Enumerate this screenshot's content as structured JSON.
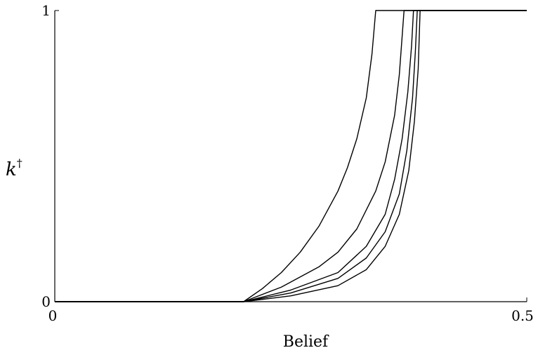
{
  "chart_data": {
    "type": "line",
    "xlabel": "Belief",
    "ylabel": "k",
    "ylabel_superscript": "†",
    "xlim": [
      0,
      0.5
    ],
    "ylim": [
      0,
      1
    ],
    "x_ticks": [
      "0",
      "0.5"
    ],
    "y_ticks": [
      "0",
      "1"
    ],
    "grid": false,
    "series": [
      {
        "x": [
          0,
          0.2,
          0.22,
          0.24,
          0.26,
          0.28,
          0.3,
          0.31,
          0.32,
          0.33,
          0.336,
          0.34,
          0.36,
          0.38,
          0.4,
          0.45,
          0.5
        ],
        "y": [
          0,
          0,
          0.045,
          0.1,
          0.17,
          0.26,
          0.38,
          0.46,
          0.56,
          0.7,
          0.85,
          1,
          1,
          1,
          1,
          1,
          1
        ]
      },
      {
        "x": [
          0,
          0.2,
          0.24,
          0.28,
          0.3,
          0.32,
          0.34,
          0.35,
          0.36,
          0.365,
          0.37,
          0.38,
          0.4,
          0.45,
          0.5
        ],
        "y": [
          0,
          0,
          0.05,
          0.12,
          0.17,
          0.25,
          0.38,
          0.48,
          0.64,
          0.78,
          1,
          1,
          1,
          1,
          1
        ]
      },
      {
        "x": [
          0,
          0.2,
          0.25,
          0.3,
          0.33,
          0.35,
          0.36,
          0.368,
          0.374,
          0.378,
          0.38,
          0.4,
          0.45,
          0.5
        ],
        "y": [
          0,
          0,
          0.04,
          0.1,
          0.19,
          0.3,
          0.42,
          0.56,
          0.72,
          0.88,
          1,
          1,
          1,
          1
        ]
      },
      {
        "x": [
          0,
          0.2,
          0.25,
          0.3,
          0.33,
          0.35,
          0.365,
          0.373,
          0.379,
          0.382,
          0.384,
          0.4,
          0.45,
          0.5
        ],
        "y": [
          0,
          0,
          0.03,
          0.08,
          0.15,
          0.24,
          0.37,
          0.52,
          0.7,
          0.86,
          1,
          1,
          1,
          1
        ]
      },
      {
        "x": [
          0,
          0.2,
          0.25,
          0.3,
          0.33,
          0.35,
          0.365,
          0.375,
          0.381,
          0.385,
          0.387,
          0.4,
          0.45,
          0.5
        ],
        "y": [
          0,
          0,
          0.02,
          0.055,
          0.11,
          0.19,
          0.3,
          0.45,
          0.62,
          0.8,
          1,
          1,
          1,
          1
        ]
      }
    ]
  }
}
